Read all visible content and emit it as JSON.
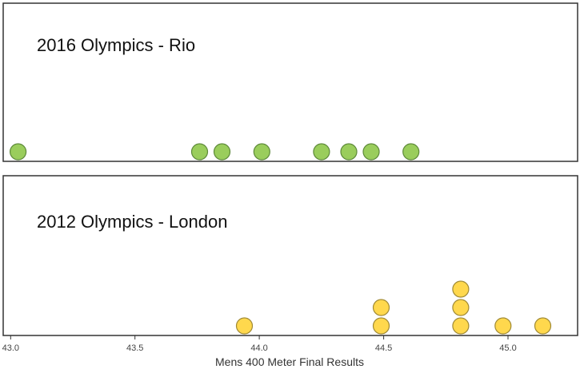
{
  "chart_data": {
    "type": "scatter",
    "subtype": "dot-plot",
    "xlabel": "Mens 400 Meter Final Results",
    "xlim": [
      42.97,
      45.28
    ],
    "x_ticks": [
      43.0,
      43.5,
      44.0,
      44.5,
      45.0
    ],
    "x_tick_labels": [
      "43.0",
      "43.5",
      "44.0",
      "44.5",
      "45.0"
    ],
    "grid": false,
    "panels": [
      {
        "title": "2016 Olympics - Rio",
        "color": "#9ACD5C",
        "stroke": "#5E8A3A",
        "values": [
          43.03,
          43.76,
          43.85,
          44.01,
          44.25,
          44.36,
          44.45,
          44.61
        ]
      },
      {
        "title": "2012 Olympics - London",
        "color": "#FFD84D",
        "stroke": "#A08A35",
        "values": [
          43.94,
          44.49,
          44.49,
          44.81,
          44.81,
          44.81,
          44.98,
          45.14
        ]
      }
    ]
  }
}
